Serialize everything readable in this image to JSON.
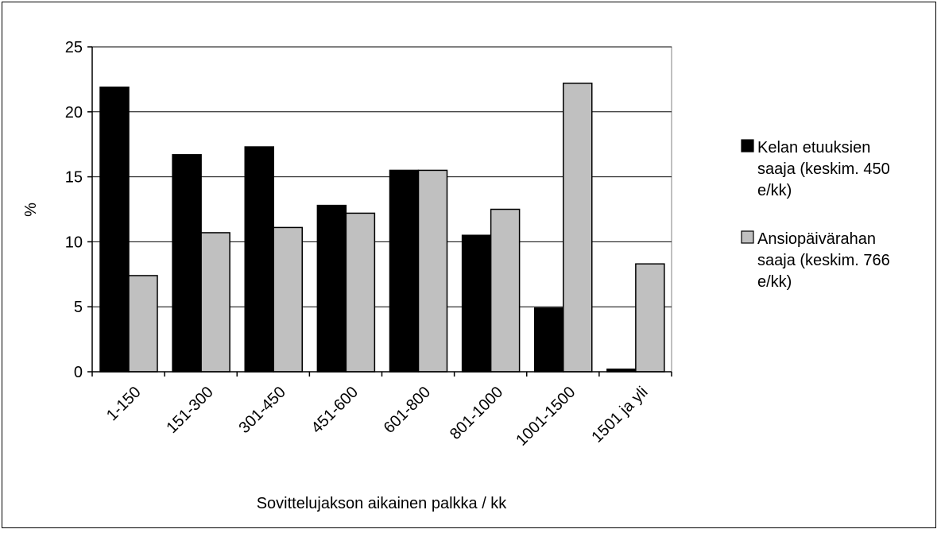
{
  "chart_data": {
    "type": "bar",
    "title": "",
    "xlabel": "Sovittelujakson aikainen palkka / kk",
    "ylabel": "%",
    "ylim": [
      0,
      25
    ],
    "yticks": [
      0,
      5,
      10,
      15,
      20,
      25
    ],
    "grid": true,
    "legend_position": "right",
    "categories": [
      "1-150",
      "151-300",
      "301-450",
      "451-600",
      "601-800",
      "801-1000",
      "1001-1500",
      "1501 ja yli"
    ],
    "series": [
      {
        "name": "Kelan etuuksien saaja (keskim. 450 e/kk)",
        "legend_lines": [
          "Kelan etuuksien",
          "saaja (keskim. 450",
          "e/kk)"
        ],
        "color": "#000000",
        "values": [
          21.9,
          16.7,
          17.3,
          12.8,
          15.5,
          10.5,
          4.9,
          0.2
        ]
      },
      {
        "name": "Ansiopäivärahan saaja (keskim. 766 e/kk)",
        "legend_lines": [
          "Ansiopäivärahan",
          "saaja (keskim. 766",
          "e/kk)"
        ],
        "color": "#c0c0c0",
        "values": [
          7.4,
          10.7,
          11.1,
          12.2,
          15.5,
          12.5,
          22.2,
          8.3
        ]
      }
    ]
  }
}
